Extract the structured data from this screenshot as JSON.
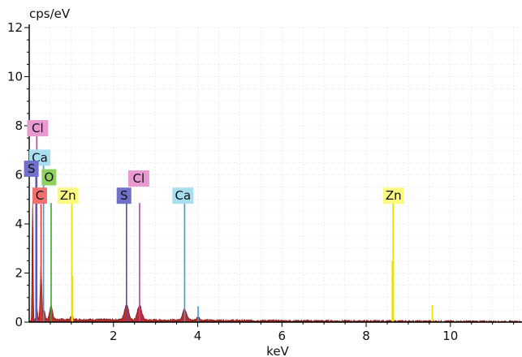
{
  "chart_data": {
    "type": "area",
    "title": "",
    "xlabel": "keV",
    "ylabel": "cps/eV",
    "xlim": [
      0,
      11.7
    ],
    "ylim": [
      0,
      12
    ],
    "x_ticks": [
      2,
      4,
      6,
      8,
      10
    ],
    "y_ticks": [
      0,
      2,
      4,
      6,
      8,
      10,
      12
    ],
    "x_tick_labels": [
      "2",
      "4",
      "6",
      "8",
      "10"
    ],
    "y_tick_labels": [
      "0",
      "2",
      "4",
      "6",
      "8",
      "10",
      "12"
    ],
    "grid": true,
    "spectrum": {
      "color": "#b01818",
      "background_level": 0.12,
      "peaks": [
        {
          "x": 0.08,
          "y": 4.9,
          "width": 0.012
        },
        {
          "x": 0.18,
          "y": 0.55,
          "width": 0.02
        },
        {
          "x": 0.28,
          "y": 2.3,
          "width": 0.02
        },
        {
          "x": 0.36,
          "y": 0.35,
          "width": 0.02
        },
        {
          "x": 0.52,
          "y": 0.55,
          "width": 0.035
        },
        {
          "x": 1.01,
          "y": 0.12,
          "width": 0.03
        },
        {
          "x": 2.31,
          "y": 0.62,
          "width": 0.05
        },
        {
          "x": 2.62,
          "y": 0.6,
          "width": 0.05
        },
        {
          "x": 3.69,
          "y": 0.45,
          "width": 0.05
        },
        {
          "x": 4.01,
          "y": 0.12,
          "width": 0.04
        }
      ]
    },
    "element_lines": [
      {
        "element": "C",
        "x": 0.28,
        "y": 4.8,
        "color": "#e23a3a"
      },
      {
        "element": "O",
        "x": 0.52,
        "y": 4.85,
        "color": "#3aa53a"
      },
      {
        "element": "Zn",
        "x": 1.01,
        "y": 5.0,
        "color": "#e8e000"
      },
      {
        "element": "Zn",
        "x": 1.03,
        "y": 1.9,
        "color": "#e8e000"
      },
      {
        "element": "S",
        "x": 2.31,
        "y": 4.85,
        "color": "#5050b0"
      },
      {
        "element": "Cl",
        "x": 2.62,
        "y": 4.85,
        "color": "#c040a0"
      },
      {
        "element": "Ca",
        "x": 3.69,
        "y": 4.85,
        "color": "#3aa0d0"
      },
      {
        "element": "Ca",
        "x": 4.01,
        "y": 0.65,
        "color": "#3aa0d0"
      },
      {
        "element": "Zn",
        "x": 8.64,
        "y": 4.85,
        "color": "#e8e000"
      },
      {
        "element": "Zn",
        "x": 8.62,
        "y": 2.5,
        "color": "#e8e000"
      },
      {
        "element": "Zn",
        "x": 9.57,
        "y": 0.7,
        "color": "#e8e000"
      },
      {
        "element": "Ca",
        "x": 0.34,
        "y": 6.4,
        "color": "#3aa0d0"
      },
      {
        "element": "Cl",
        "x": 0.18,
        "y": 7.9,
        "color": "#c040a0"
      },
      {
        "element": "S",
        "x": 0.16,
        "y": 6.2,
        "color": "#5050b0"
      }
    ],
    "element_labels": [
      {
        "text": "Cl",
        "x": 0.2,
        "y": 7.9,
        "bg": "#e89ad0"
      },
      {
        "text": "Ca",
        "x": 0.25,
        "y": 6.7,
        "bg": "#a8dff0"
      },
      {
        "text": "S",
        "x": 0.05,
        "y": 6.25,
        "bg": "#7070c8"
      },
      {
        "text": "O",
        "x": 0.47,
        "y": 5.9,
        "bg": "#8ed060"
      },
      {
        "text": "C",
        "x": 0.25,
        "y": 5.15,
        "bg": "#f07070"
      },
      {
        "text": "Zn",
        "x": 0.92,
        "y": 5.15,
        "bg": "#fafa80"
      },
      {
        "text": "Cl",
        "x": 2.6,
        "y": 5.85,
        "bg": "#e89ad0"
      },
      {
        "text": "S",
        "x": 2.25,
        "y": 5.15,
        "bg": "#7070c8"
      },
      {
        "text": "Ca",
        "x": 3.65,
        "y": 5.15,
        "bg": "#a8dff0"
      },
      {
        "text": "Zn",
        "x": 8.65,
        "y": 5.15,
        "bg": "#fafa80"
      }
    ]
  }
}
